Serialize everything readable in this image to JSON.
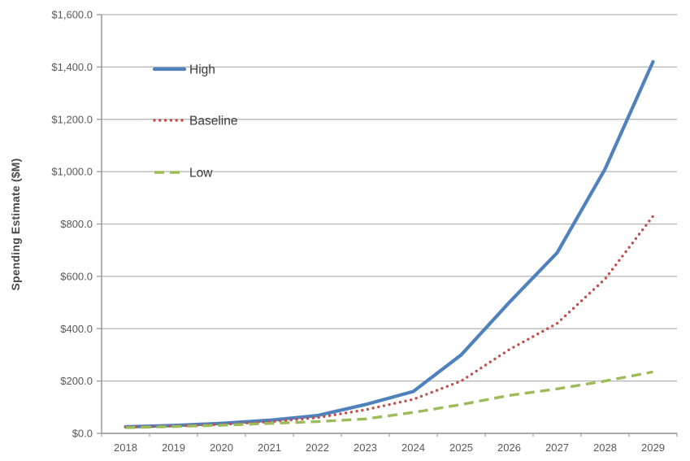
{
  "page": {
    "background": "#ffffff"
  },
  "chart_data": {
    "type": "line",
    "title": "",
    "xlabel": "",
    "ylabel": "Spending Estimate ($M)",
    "categories": [
      "2018",
      "2019",
      "2020",
      "2021",
      "2022",
      "2023",
      "2024",
      "2025",
      "2026",
      "2027",
      "2028",
      "2029"
    ],
    "ylim": [
      0,
      1600
    ],
    "y_tick_step": 200,
    "y_tick_labels": [
      "$0.0",
      "$200.0",
      "$400.0",
      "$600.0",
      "$800.0",
      "$1,000.0",
      "$1,200.0",
      "$1,400.0",
      "$1,600.0"
    ],
    "grid": true,
    "legend_position": "inside-top-left",
    "series": [
      {
        "name": "High",
        "style": "solid",
        "color": "#4F81BD",
        "values": [
          25,
          30,
          38,
          50,
          68,
          110,
          160,
          300,
          500,
          690,
          1010,
          1420
        ]
      },
      {
        "name": "Baseline",
        "style": "dotted",
        "color": "#C0504D",
        "values": [
          24,
          28,
          34,
          44,
          60,
          90,
          130,
          200,
          320,
          420,
          590,
          830
        ]
      },
      {
        "name": "Low",
        "style": "dashed",
        "color": "#9BBB59",
        "values": [
          22,
          26,
          31,
          38,
          45,
          55,
          80,
          110,
          145,
          170,
          200,
          235
        ]
      }
    ]
  },
  "colors": {
    "gridline": "#b3b3b3",
    "axis": "#9e9e9e",
    "tick_text": "#595959",
    "legend_text": "#3a3a3a"
  }
}
